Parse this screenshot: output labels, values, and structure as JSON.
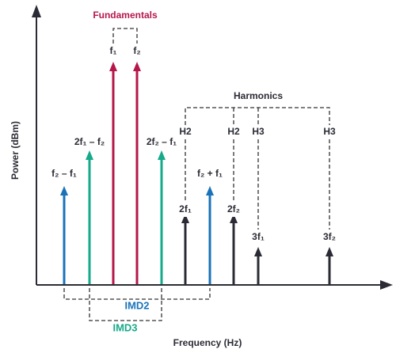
{
  "title": "Fundamentals",
  "harmonics_title": "Harmonics",
  "axes": {
    "y_label": "Power (dBm)",
    "x_label": "Frequency (Hz)"
  },
  "groups": {
    "imd2": "IMD2",
    "imd3": "IMD3"
  },
  "nodes": [
    {
      "label": "f₂ – f₁"
    },
    {
      "label": "2f₁ – f₂"
    },
    {
      "label": "f₁"
    },
    {
      "label": "f₂"
    },
    {
      "label": "2f₂ – f₁"
    },
    {
      "label": "2f₁",
      "tag": "H2"
    },
    {
      "label": "f₂ + f₁"
    },
    {
      "label": "2f₂",
      "tag": "H2"
    },
    {
      "label": "3f₁",
      "tag": "H3"
    },
    {
      "label": "3f₂",
      "tag": "H3"
    }
  ]
}
